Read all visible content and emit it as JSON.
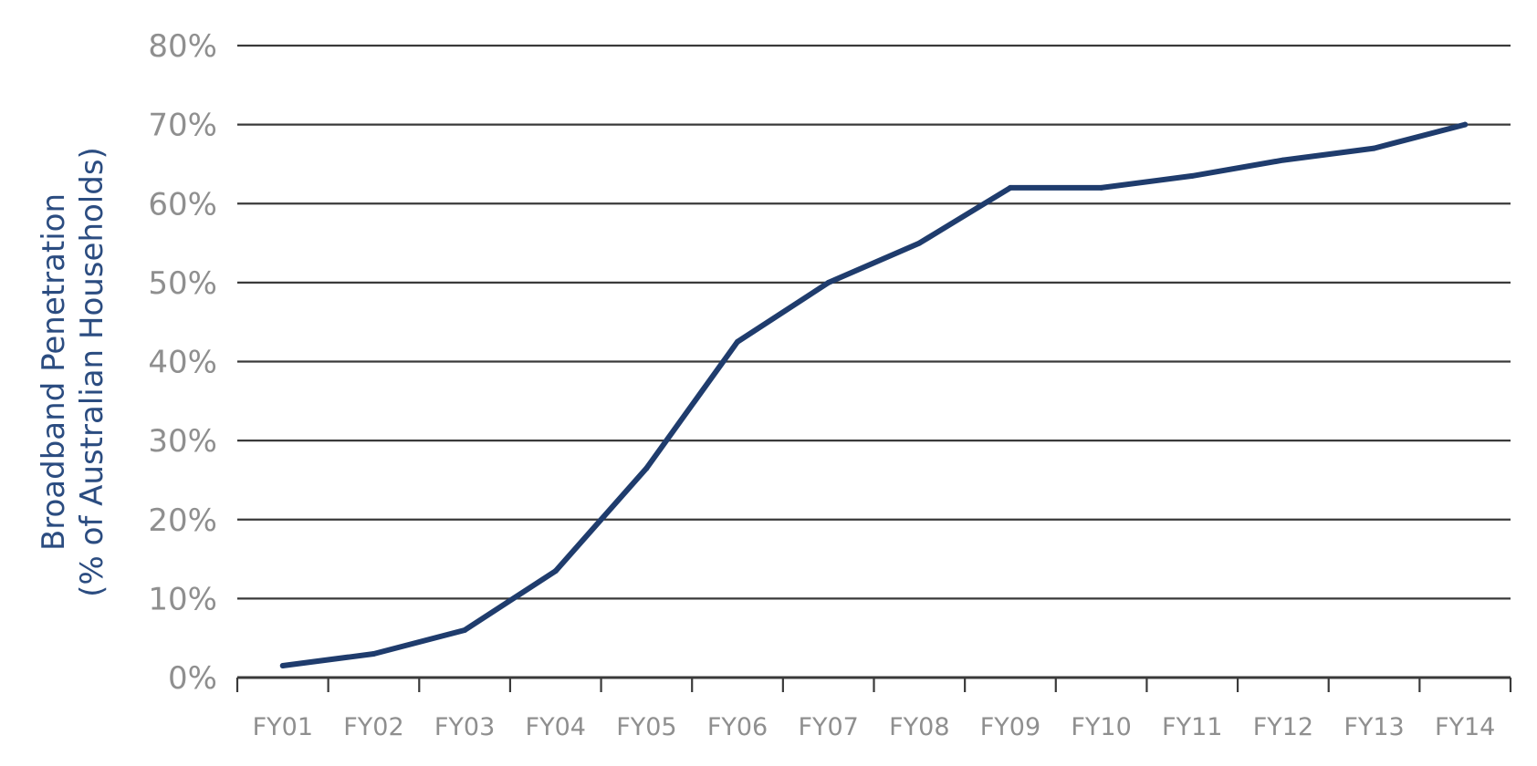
{
  "chart_data": {
    "type": "line",
    "categories": [
      "FY01",
      "FY02",
      "FY03",
      "FY04",
      "FY05",
      "FY06",
      "FY07",
      "FY08",
      "FY09",
      "FY10",
      "FY11",
      "FY12",
      "FY13",
      "FY14"
    ],
    "series": [
      {
        "values": [
          1.5,
          3,
          6,
          13.5,
          26.5,
          42.5,
          50,
          55,
          62,
          62,
          63.5,
          65.5,
          67,
          70
        ]
      }
    ],
    "ylabel": [
      "Broadband Penetration",
      "(% of Australian Households)"
    ],
    "yticks": [
      "0%",
      "10%",
      "20%",
      "30%",
      "40%",
      "50%",
      "60%",
      "70%",
      "80%"
    ],
    "ylim": [
      0,
      80
    ],
    "grid": true,
    "colors": {
      "line": "#1f3c6d",
      "axis_title": "#2b4c80",
      "tick_label": "#8f8f8f",
      "grid": "#3a3a3a"
    }
  }
}
